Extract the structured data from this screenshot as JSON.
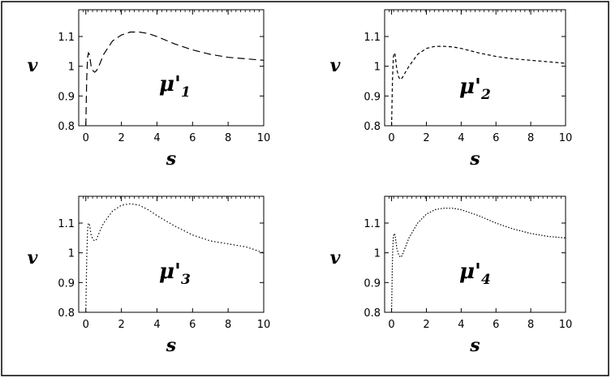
{
  "chart_data": [
    {
      "type": "line",
      "series_name": "μ'",
      "series_subscript": "1",
      "xlabel": "s",
      "ylabel": "v",
      "xlim": [
        -0.4,
        10
      ],
      "ylim": [
        0.8,
        1.19
      ],
      "xticks": [
        0,
        2,
        4,
        6,
        8,
        10
      ],
      "xtick_labels": [
        "0",
        "2",
        "4",
        "6",
        "8",
        "10"
      ],
      "yticks": [
        0.8,
        0.9,
        1.0,
        1.1
      ],
      "ytick_labels": [
        "0.8",
        "0.9",
        "1",
        "1.1"
      ],
      "dash": "9,5",
      "x": [
        0,
        0.05,
        0.1,
        0.15,
        0.2,
        0.3,
        0.4,
        0.5,
        0.6,
        0.8,
        1,
        1.5,
        2,
        2.5,
        3,
        3.5,
        4,
        5,
        6,
        7,
        8,
        9,
        10
      ],
      "y": [
        0.8,
        0.96,
        1.03,
        1.045,
        1.04,
        1.0,
        0.985,
        0.98,
        0.985,
        1.01,
        1.04,
        1.085,
        1.105,
        1.115,
        1.115,
        1.11,
        1.1,
        1.075,
        1.055,
        1.04,
        1.03,
        1.025,
        1.02
      ]
    },
    {
      "type": "line",
      "series_name": "μ'",
      "series_subscript": "2",
      "xlabel": "s",
      "ylabel": "v",
      "xlim": [
        -0.4,
        10
      ],
      "ylim": [
        0.8,
        1.19
      ],
      "xticks": [
        0,
        2,
        4,
        6,
        8,
        10
      ],
      "xtick_labels": [
        "0",
        "2",
        "4",
        "6",
        "8",
        "10"
      ],
      "yticks": [
        0.8,
        0.9,
        1.0,
        1.1
      ],
      "ytick_labels": [
        "0.8",
        "0.9",
        "1",
        "1.1"
      ],
      "dash": "4,3",
      "x": [
        0,
        0.05,
        0.1,
        0.15,
        0.2,
        0.3,
        0.4,
        0.5,
        0.6,
        0.8,
        1,
        1.5,
        2,
        2.5,
        3,
        3.5,
        4,
        5,
        6,
        7,
        8,
        9,
        10
      ],
      "y": [
        0.8,
        0.95,
        1.03,
        1.045,
        1.04,
        0.99,
        0.965,
        0.955,
        0.96,
        0.98,
        1.0,
        1.04,
        1.06,
        1.067,
        1.067,
        1.065,
        1.06,
        1.045,
        1.033,
        1.025,
        1.02,
        1.015,
        1.01
      ]
    },
    {
      "type": "line",
      "series_name": "μ'",
      "series_subscript": "3",
      "xlabel": "s",
      "ylabel": "v",
      "xlim": [
        -0.4,
        10
      ],
      "ylim": [
        0.8,
        1.19
      ],
      "xticks": [
        0,
        2,
        4,
        6,
        8,
        10
      ],
      "xtick_labels": [
        "0",
        "2",
        "4",
        "6",
        "8",
        "10"
      ],
      "yticks": [
        0.8,
        0.9,
        1.0,
        1.1
      ],
      "ytick_labels": [
        "0.8",
        "0.9",
        "1",
        "1.1"
      ],
      "dash": "1.5,2.5",
      "x": [
        0,
        0.05,
        0.1,
        0.15,
        0.2,
        0.3,
        0.4,
        0.5,
        0.6,
        0.8,
        1,
        1.5,
        2,
        2.5,
        3,
        3.5,
        4,
        5,
        6,
        7,
        8,
        9,
        10
      ],
      "y": [
        0.8,
        0.98,
        1.08,
        1.1,
        1.095,
        1.06,
        1.045,
        1.04,
        1.045,
        1.075,
        1.1,
        1.14,
        1.16,
        1.165,
        1.16,
        1.145,
        1.125,
        1.09,
        1.06,
        1.04,
        1.03,
        1.02,
        1.0
      ]
    },
    {
      "type": "line",
      "series_name": "μ'",
      "series_subscript": "4",
      "xlabel": "s",
      "ylabel": "v",
      "xlim": [
        -0.4,
        10
      ],
      "ylim": [
        0.8,
        1.19
      ],
      "xticks": [
        0,
        2,
        4,
        6,
        8,
        10
      ],
      "xtick_labels": [
        "0",
        "2",
        "4",
        "6",
        "8",
        "10"
      ],
      "yticks": [
        0.8,
        0.9,
        1.0,
        1.1
      ],
      "ytick_labels": [
        "0.8",
        "0.9",
        "1",
        "1.1"
      ],
      "dash": "1.5,2",
      "x": [
        0,
        0.05,
        0.1,
        0.15,
        0.2,
        0.3,
        0.4,
        0.5,
        0.6,
        0.8,
        1,
        1.5,
        2,
        2.5,
        3,
        3.5,
        4,
        5,
        6,
        7,
        8,
        9,
        10
      ],
      "y": [
        0.8,
        0.98,
        1.055,
        1.065,
        1.06,
        1.015,
        0.995,
        0.985,
        0.99,
        1.02,
        1.05,
        1.1,
        1.13,
        1.145,
        1.15,
        1.15,
        1.145,
        1.125,
        1.1,
        1.08,
        1.065,
        1.055,
        1.05
      ]
    }
  ]
}
